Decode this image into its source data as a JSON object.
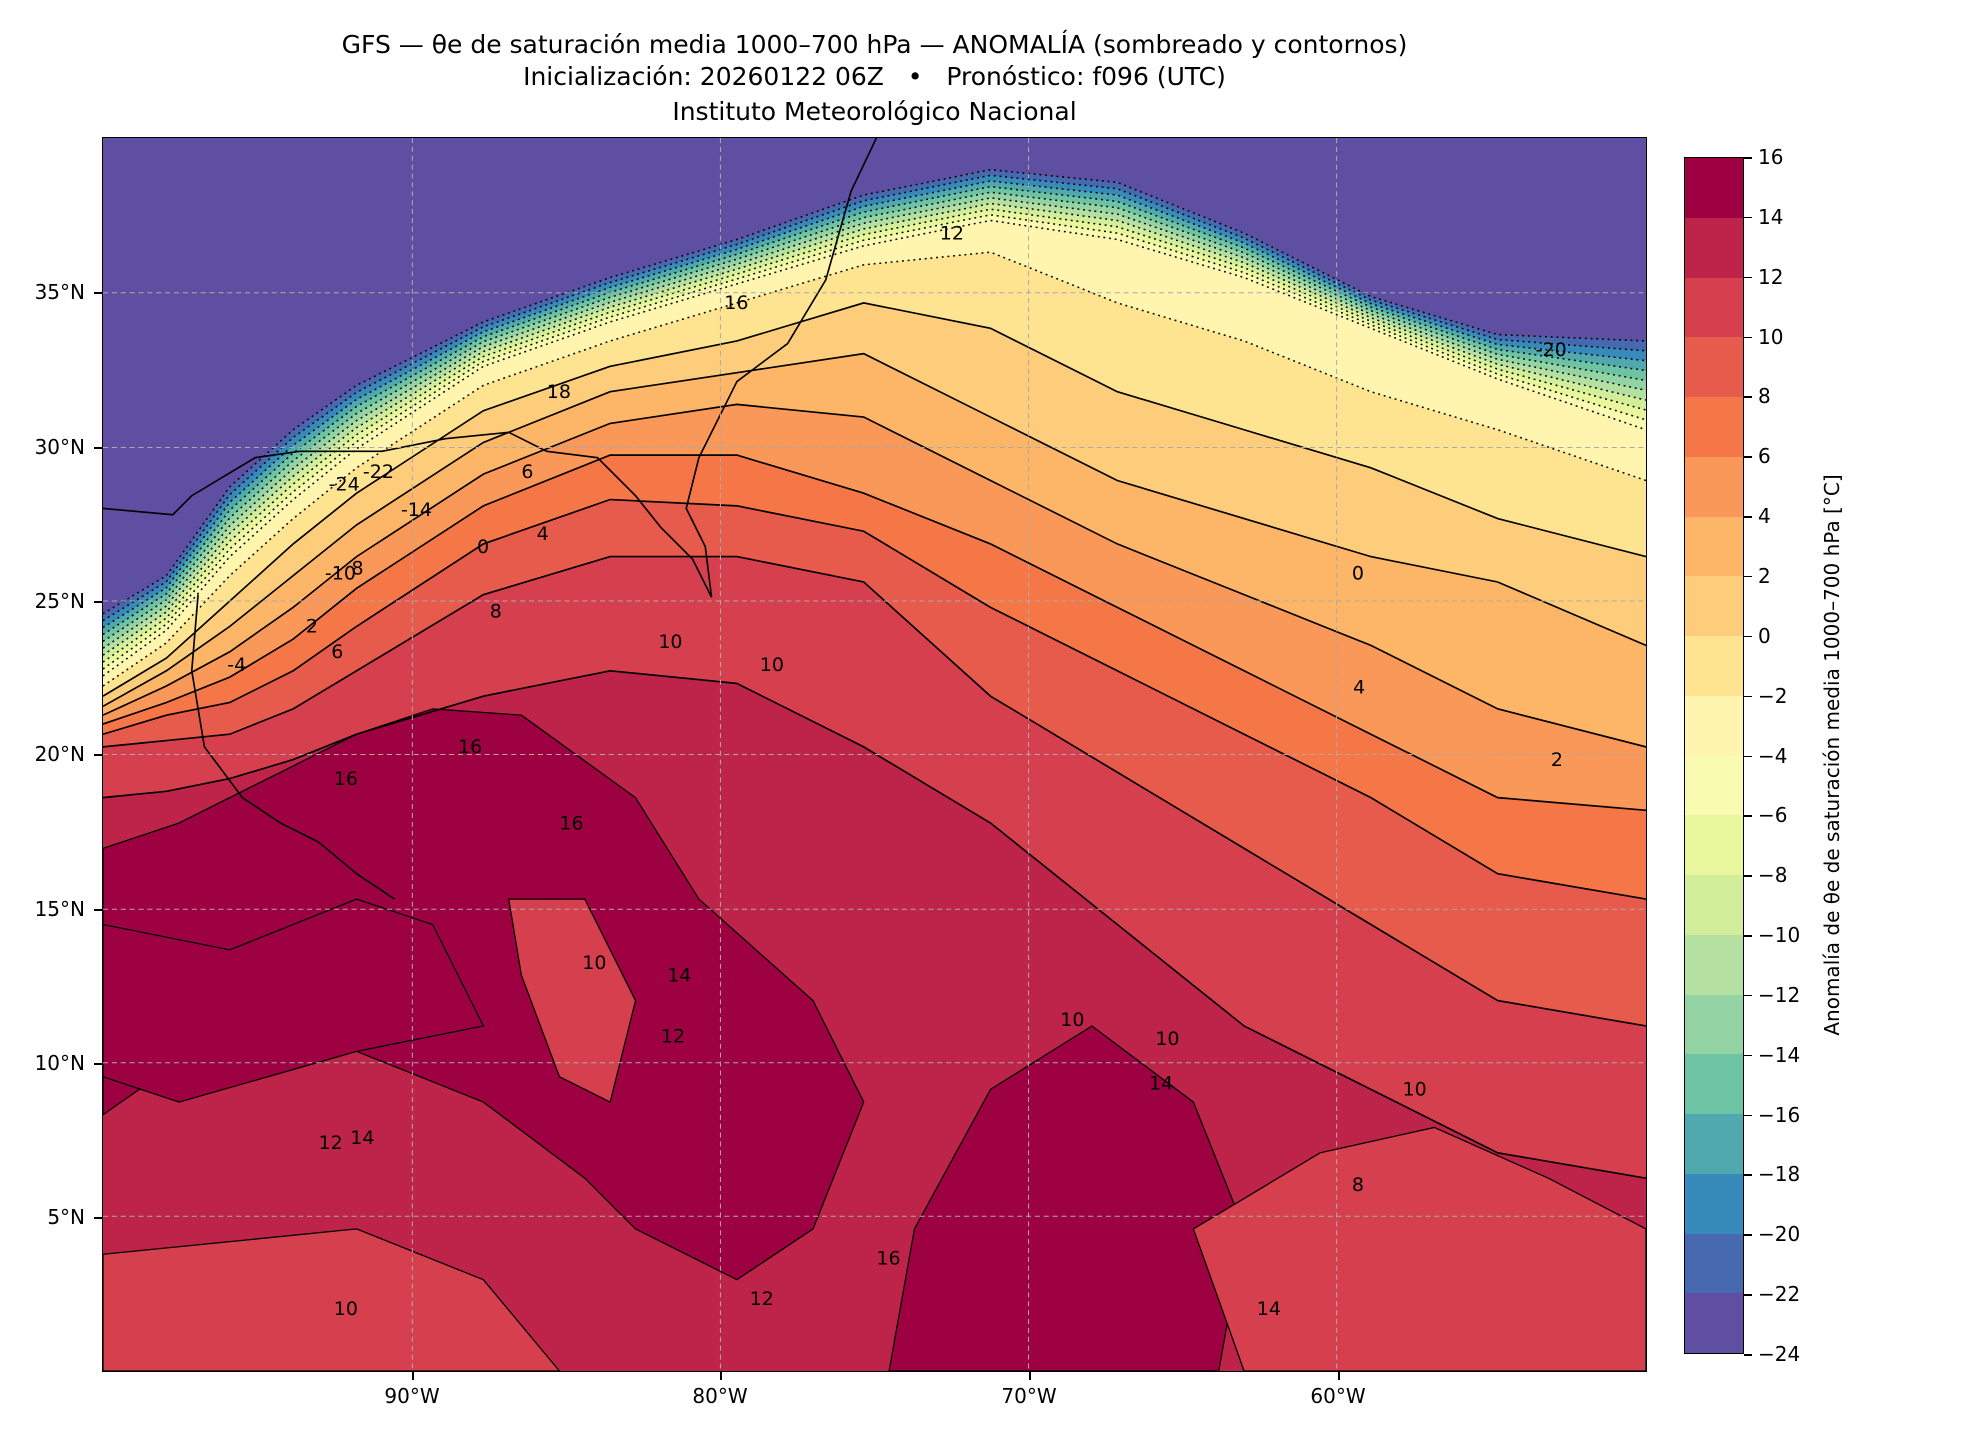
{
  "title": {
    "line1": "GFS — θe de saturación media 1000–700 hPa — ANOMALÍA (sombreado y contornos)",
    "line2": "Inicialización: 20260122 06Z   •   Pronóstico: f096 (UTC)",
    "line3": "Instituto Meteorológico Nacional"
  },
  "axes": {
    "lat_ticks": [
      "35°N",
      "30°N",
      "25°N",
      "20°N",
      "15°N",
      "10°N",
      "5°N"
    ],
    "lon_ticks": [
      "90°W",
      "80°W",
      "70°W",
      "60°W"
    ]
  },
  "colorbar": {
    "label": "Anomalía de θe de saturación media 1000–700 hPa [°C]",
    "ticks": [
      "16",
      "14",
      "12",
      "10",
      "8",
      "6",
      "4",
      "2",
      "0",
      "−2",
      "−4",
      "−6",
      "−8",
      "−10",
      "−12",
      "−14",
      "−16",
      "−18",
      "−20",
      "−22",
      "−24"
    ],
    "colors": [
      "#9e0142",
      "#be2449",
      "#d6404e",
      "#e65b4b",
      "#f57748",
      "#f99858",
      "#fdb567",
      "#fdcd7c",
      "#fee491",
      "#fff5ae",
      "#f8fbb0",
      "#e8f69c",
      "#d3ee9b",
      "#b4e0a2",
      "#93d3a4",
      "#6cc4a5",
      "#4fa9af",
      "#378bbb",
      "#4669af",
      "#5e4fa2"
    ]
  },
  "chart_data": {
    "type": "heatmap",
    "title": "GFS — θe de saturación media 1000–700 hPa — ANOMALÍA (sombreado y contornos)",
    "units": "°C",
    "levels": [
      -24,
      -22,
      -20,
      -18,
      -16,
      -14,
      -12,
      -10,
      -8,
      -6,
      -4,
      -2,
      0,
      2,
      4,
      6,
      8,
      10,
      12,
      14,
      16
    ],
    "lon_range": [
      -100,
      -50
    ],
    "lat_range": [
      0,
      40
    ],
    "grid": true
  },
  "contour_labels": [
    "16",
    "18",
    "12",
    "-20",
    "-24",
    "-22",
    "-14",
    "6",
    "0",
    "4",
    "-10",
    "8",
    "2",
    "-4",
    "6",
    "8",
    "10",
    "10",
    "0",
    "4",
    "2",
    "16",
    "16",
    "16",
    "14",
    "12",
    "10",
    "10",
    "14",
    "10",
    "14",
    "12",
    "10",
    "8",
    "16",
    "10",
    "12",
    "14"
  ]
}
